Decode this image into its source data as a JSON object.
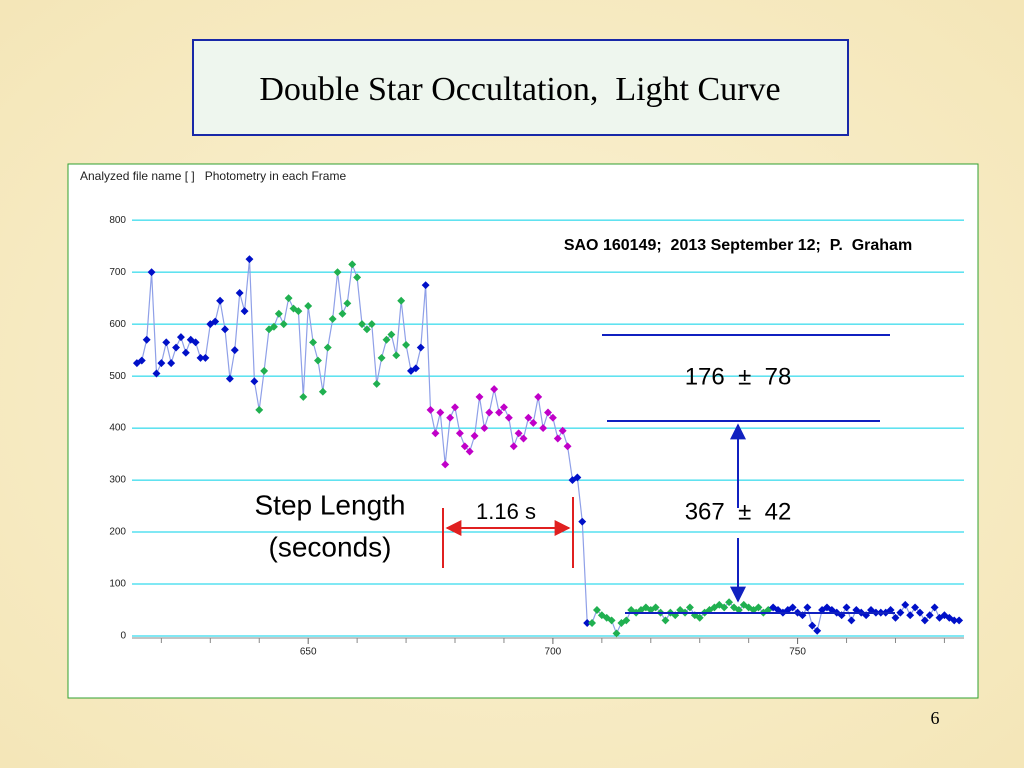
{
  "chart_data": {
    "type": "line",
    "title": "Double Star Occultation,  Light Curve",
    "header": "Analyzed file name [ ]   Photometry in each Frame",
    "annotations": [
      "SAO 160149;  2013 September 12;  P.  Graham",
      "176  ±  78",
      "367  ±  42",
      "Step Length",
      "(seconds)",
      "1.16 s"
    ],
    "x": [
      615,
      616,
      617,
      618,
      619,
      620,
      621,
      622,
      623,
      624,
      625,
      626,
      627,
      628,
      629,
      630,
      631,
      632,
      633,
      634,
      635,
      636,
      637,
      638,
      639,
      640,
      641,
      642,
      643,
      644,
      645,
      646,
      647,
      648,
      649,
      650,
      651,
      652,
      653,
      654,
      655,
      656,
      657,
      658,
      659,
      660,
      661,
      662,
      663,
      664,
      665,
      666,
      667,
      668,
      669,
      670,
      671,
      672,
      673,
      674,
      675,
      676,
      677,
      678,
      679,
      680,
      681,
      682,
      683,
      684,
      685,
      686,
      687,
      688,
      689,
      690,
      691,
      692,
      693,
      694,
      695,
      696,
      697,
      698,
      699,
      700,
      701,
      702,
      703,
      704,
      705,
      706,
      707,
      708,
      709,
      710,
      711,
      712,
      713,
      714,
      715,
      716,
      717,
      718,
      719,
      720,
      721,
      722,
      723,
      724,
      725,
      726,
      727,
      728,
      729,
      730,
      731,
      732,
      733,
      734,
      735,
      736,
      737,
      738,
      739,
      740,
      741,
      742,
      743,
      744,
      745,
      746,
      747,
      748,
      749,
      750,
      751,
      752,
      753,
      754,
      755,
      756,
      757,
      758,
      759,
      760,
      761,
      762,
      763,
      764,
      765,
      766,
      767,
      768,
      769,
      770,
      771,
      772,
      773,
      774,
      775,
      776,
      777,
      778,
      779,
      780,
      781,
      782,
      783
    ],
    "values": [
      525,
      530,
      570,
      700,
      505,
      525,
      565,
      525,
      555,
      575,
      545,
      570,
      565,
      535,
      535,
      600,
      605,
      645,
      590,
      495,
      550,
      660,
      625,
      725,
      490,
      435,
      510,
      590,
      595,
      620,
      600,
      650,
      630,
      625,
      460,
      635,
      565,
      530,
      470,
      555,
      610,
      700,
      620,
      640,
      715,
      690,
      600,
      590,
      600,
      485,
      535,
      570,
      580,
      540,
      645,
      560,
      510,
      515,
      555,
      675,
      435,
      390,
      430,
      330,
      420,
      440,
      390,
      365,
      355,
      385,
      460,
      400,
      430,
      475,
      430,
      440,
      420,
      365,
      390,
      380,
      420,
      410,
      460,
      400,
      430,
      420,
      380,
      395,
      365,
      300,
      305,
      220,
      25,
      25,
      50,
      40,
      35,
      30,
      5,
      25,
      30,
      50,
      45,
      50,
      55,
      50,
      55,
      45,
      30,
      45,
      40,
      50,
      45,
      55,
      40,
      35,
      45,
      50,
      55,
      60,
      55,
      65,
      55,
      50,
      60,
      55,
      50,
      55,
      45,
      50,
      55,
      50,
      45,
      50,
      55,
      45,
      40,
      55,
      20,
      10,
      50,
      55,
      50,
      45,
      40,
      55,
      30,
      50,
      45,
      40,
      50,
      45,
      45,
      45,
      50,
      35,
      45,
      60,
      40,
      55,
      45,
      30,
      40,
      55,
      35,
      40,
      35,
      30,
      30
    ],
    "line_color": "#8fa0e8",
    "marker_colors": [
      "#0010c8",
      "#0010c8",
      "#0010c8",
      "#0010c8",
      "#0010c8",
      "#0010c8",
      "#0010c8",
      "#0010c8",
      "#0010c8",
      "#0010c8",
      "#0010c8",
      "#0010c8",
      "#0010c8",
      "#0010c8",
      "#0010c8",
      "#0010c8",
      "#0010c8",
      "#0010c8",
      "#0010c8",
      "#0010c8",
      "#0010c8",
      "#0010c8",
      "#0010c8",
      "#0010c8",
      "#0010c8",
      "#20b050",
      "#20b050",
      "#20b050",
      "#20b050",
      "#20b050",
      "#20b050",
      "#20b050",
      "#20b050",
      "#20b050",
      "#20b050",
      "#20b050",
      "#20b050",
      "#20b050",
      "#20b050",
      "#20b050",
      "#20b050",
      "#20b050",
      "#20b050",
      "#20b050",
      "#20b050",
      "#20b050",
      "#20b050",
      "#20b050",
      "#20b050",
      "#20b050",
      "#20b050",
      "#20b050",
      "#20b050",
      "#20b050",
      "#20b050",
      "#20b050",
      "#0010c8",
      "#0010c8",
      "#0010c8",
      "#0010c8",
      "#c000c8",
      "#c000c8",
      "#c000c8",
      "#c000c8",
      "#c000c8",
      "#c000c8",
      "#c000c8",
      "#c000c8",
      "#c000c8",
      "#c000c8",
      "#c000c8",
      "#c000c8",
      "#c000c8",
      "#c000c8",
      "#c000c8",
      "#c000c8",
      "#c000c8",
      "#c000c8",
      "#c000c8",
      "#c000c8",
      "#c000c8",
      "#c000c8",
      "#c000c8",
      "#c000c8",
      "#c000c8",
      "#c000c8",
      "#c000c8",
      "#c000c8",
      "#c000c8",
      "#0010c8",
      "#0010c8",
      "#0010c8",
      "#0010c8",
      "#20b050",
      "#20b050",
      "#20b050",
      "#20b050",
      "#20b050",
      "#20b050",
      "#20b050",
      "#20b050",
      "#20b050",
      "#20b050",
      "#20b050",
      "#20b050",
      "#20b050",
      "#20b050",
      "#20b050",
      "#20b050",
      "#20b050",
      "#20b050",
      "#20b050",
      "#20b050",
      "#20b050",
      "#20b050",
      "#20b050",
      "#20b050",
      "#20b050",
      "#20b050",
      "#20b050",
      "#20b050",
      "#20b050",
      "#20b050",
      "#20b050",
      "#20b050",
      "#20b050",
      "#20b050",
      "#20b050",
      "#20b050",
      "#20b050",
      "#0010c8",
      "#0010c8",
      "#0010c8",
      "#0010c8",
      "#0010c8",
      "#0010c8",
      "#0010c8",
      "#0010c8",
      "#0010c8",
      "#0010c8",
      "#0010c8",
      "#0010c8",
      "#0010c8",
      "#0010c8",
      "#0010c8",
      "#0010c8",
      "#0010c8",
      "#0010c8",
      "#0010c8",
      "#0010c8",
      "#0010c8",
      "#0010c8",
      "#0010c8",
      "#0010c8",
      "#0010c8",
      "#0010c8",
      "#0010c8",
      "#0010c8",
      "#0010c8",
      "#0010c8",
      "#0010c8",
      "#0010c8",
      "#0010c8",
      "#0010c8",
      "#0010c8",
      "#0010c8",
      "#0010c8",
      "#0010c8",
      "#0010c8"
    ],
    "xlim": [
      614,
      784
    ],
    "xticks": [
      650,
      700,
      750
    ],
    "xminor_ticks": [
      620,
      630,
      640,
      660,
      670,
      680,
      690,
      710,
      720,
      730,
      740,
      760,
      770,
      780
    ],
    "ylim": [
      0,
      860
    ],
    "yticks": [
      0,
      100,
      200,
      300,
      400,
      500,
      600,
      700,
      800
    ],
    "grid": true,
    "grid_color": "#00d0e8"
  },
  "page_number": "6"
}
